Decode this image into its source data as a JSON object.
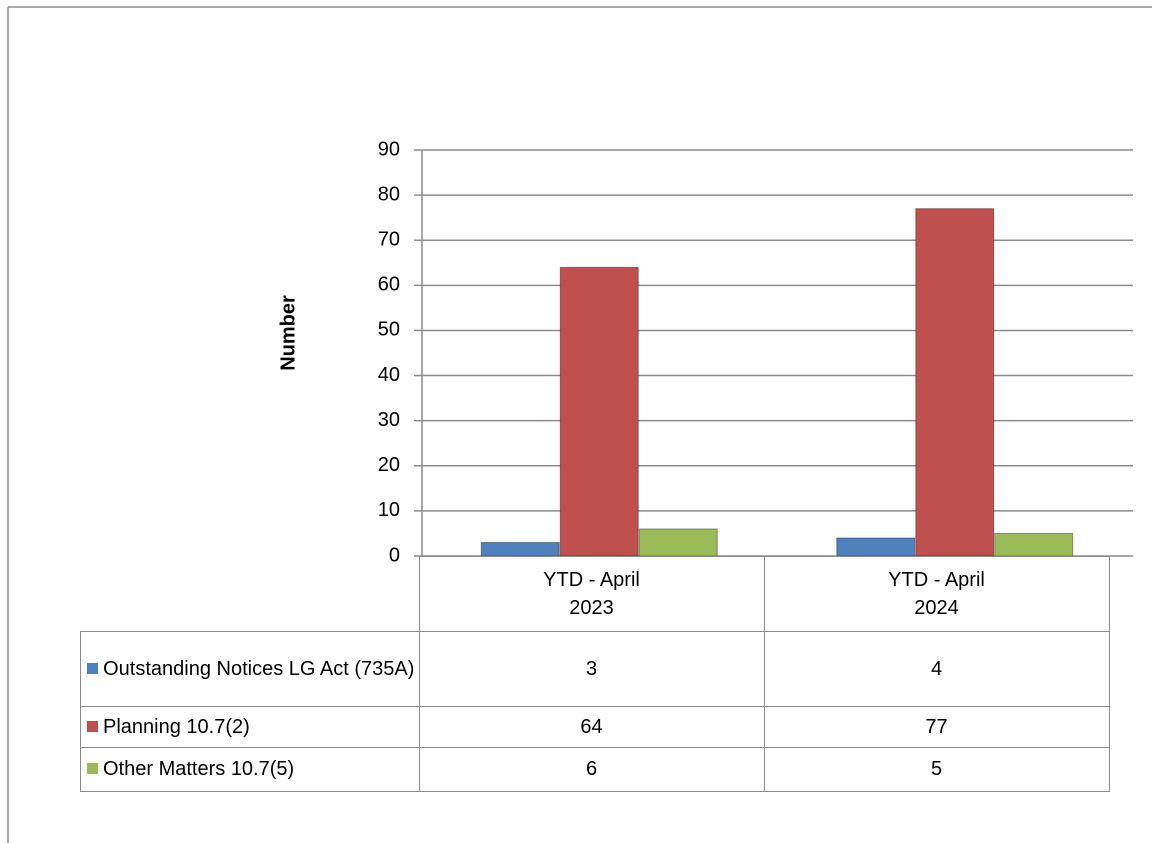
{
  "chart_data": {
    "type": "bar",
    "y_label": "Number",
    "categories": [
      "YTD - April 2023",
      "YTD - April 2024"
    ],
    "series": [
      {
        "name": "Outstanding Notices LG Act (735A)",
        "color": "#4f81bd",
        "values": [
          3,
          4
        ]
      },
      {
        "name": "Planning 10.7(2)",
        "color": "#c0504d",
        "values": [
          64,
          77
        ]
      },
      {
        "name": "Other Matters 10.7(5)",
        "color": "#9bbb59",
        "values": [
          6,
          5
        ]
      }
    ],
    "ylim": [
      0,
      90
    ],
    "yticks": [
      0,
      10,
      20,
      30,
      40,
      50,
      60,
      70,
      80,
      90
    ],
    "grid": true,
    "data_table": true
  }
}
